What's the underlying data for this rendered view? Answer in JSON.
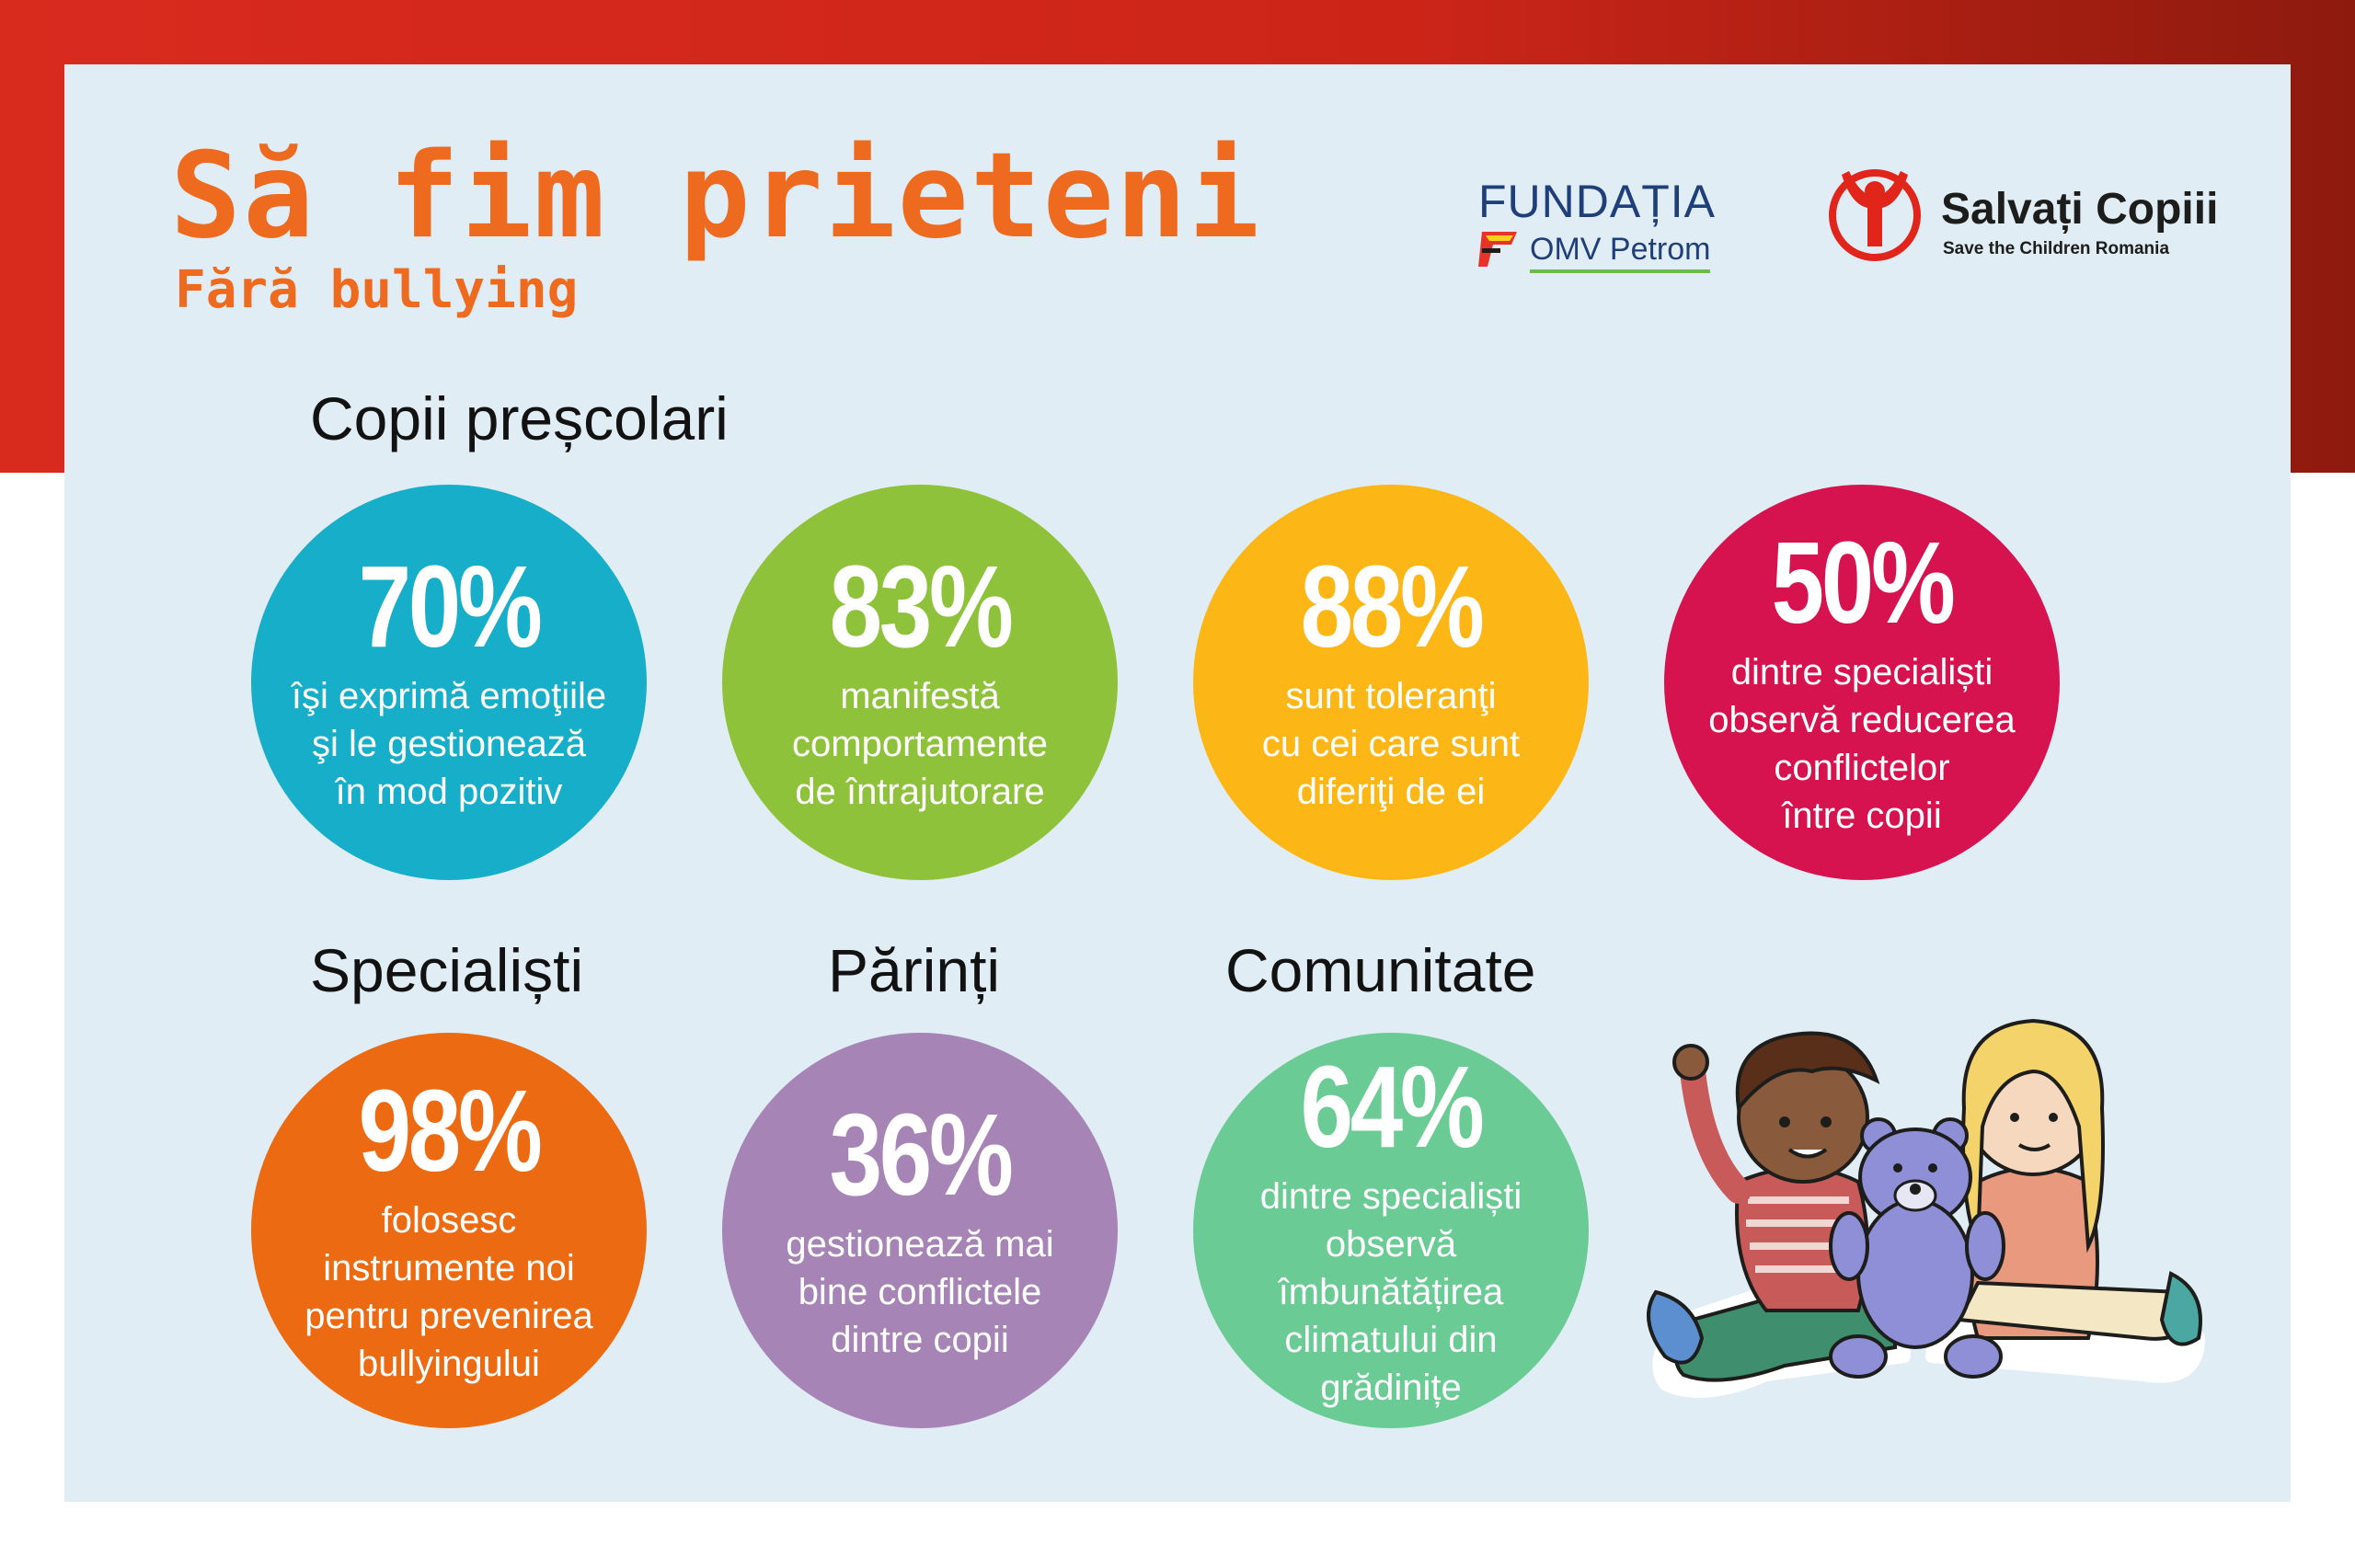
{
  "header": {
    "title": "Să fim prieteni",
    "subtitle": "Fără bullying"
  },
  "logos": {
    "fundatia": {
      "word": "FUNDAȚIA",
      "brand": "OMV Petrom"
    },
    "salvati": {
      "name": "Salvați Copiii",
      "tagline": "Save the Children Romania"
    }
  },
  "sections": {
    "prescolari": "Copii preșcolari",
    "specialisti": "Specialiști",
    "parinti": "Părinți",
    "comunitate": "Comunitate"
  },
  "stats": [
    {
      "value": "70%",
      "text": "îşi exprimă emoţiile\nşi le gestionează\nîn mod pozitiv",
      "color": "#17aec9"
    },
    {
      "value": "83%",
      "text": "manifestă\ncomportamente\nde întrajutorare",
      "color": "#8fc23b"
    },
    {
      "value": "88%",
      "text": "sunt toleranţi\ncu cei care sunt\ndiferiţi de ei",
      "color": "#fcb716"
    },
    {
      "value": "50%",
      "text": "dintre specialiști\nobservă reducerea\nconflictelor\nîntre copii",
      "color": "#d6124f"
    },
    {
      "value": "98%",
      "text": "folosesc\ninstrumente noi\npentru prevenirea\nbullyingului",
      "color": "#ec6a12"
    },
    {
      "value": "36%",
      "text": "gestionează mai\nbine conflictele\ndintre copii",
      "color": "#a684b6"
    },
    {
      "value": "64%",
      "text": "dintre specialiști\nobservă\nîmbunătățirea\nclimatului din\ngrădinițe",
      "color": "#6acb94"
    }
  ],
  "illustration": {
    "icon": "children-with-teddy-bear-illustration"
  }
}
